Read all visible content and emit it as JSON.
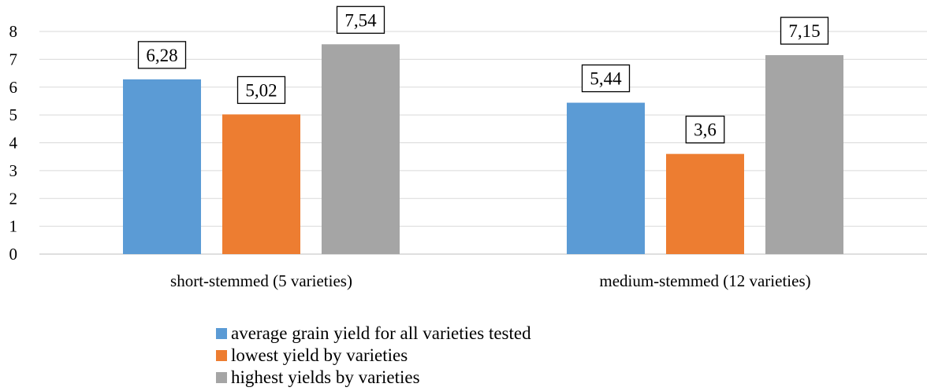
{
  "chart_data": {
    "type": "bar",
    "categories": [
      "short-stemmed (5 varieties)",
      "medium-stemmed (12 varieties)"
    ],
    "series": [
      {
        "name": "average grain yield for all varieties tested",
        "values": [
          6.28,
          5.44
        ],
        "labels": [
          "6,28",
          "5,44"
        ],
        "color": "#5B9BD5"
      },
      {
        "name": "lowest yield by varieties",
        "values": [
          5.02,
          3.6
        ],
        "labels": [
          "5,02",
          "3,6"
        ],
        "color": "#ED7D31"
      },
      {
        "name": "highest yields by varieties",
        "values": [
          7.54,
          7.15
        ],
        "labels": [
          "7,54",
          "7,15"
        ],
        "color": "#A5A5A5"
      }
    ],
    "ylim": [
      0,
      8
    ],
    "yticks": [
      "0",
      "1",
      "2",
      "3",
      "4",
      "5",
      "6",
      "7",
      "8"
    ],
    "grid": true,
    "legend_position": "bottom"
  }
}
